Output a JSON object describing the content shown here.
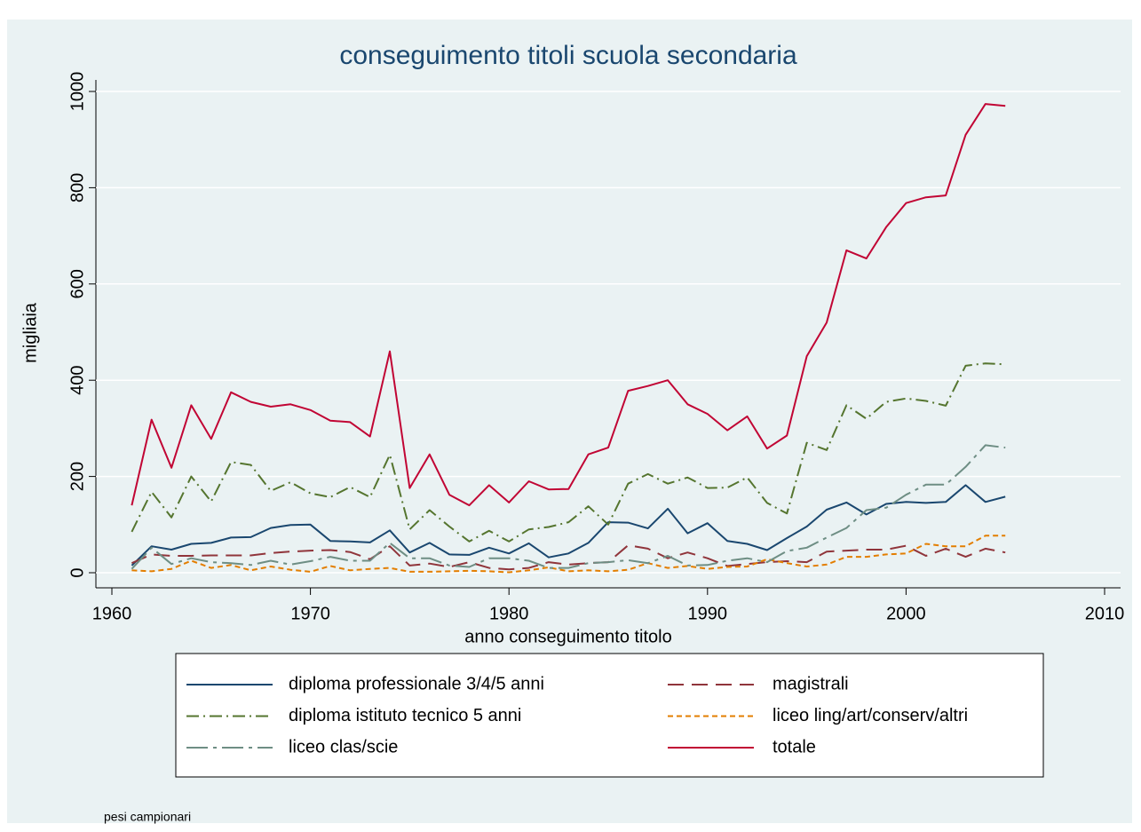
{
  "chart_data": {
    "type": "line",
    "title": "conseguimento titoli scuola secondaria",
    "x_label": "anno conseguimento titolo",
    "y_label": "migliaia",
    "note": "pesi campionari",
    "x": [
      1961,
      1962,
      1963,
      1964,
      1965,
      1966,
      1967,
      1968,
      1969,
      1970,
      1971,
      1972,
      1973,
      1974,
      1975,
      1976,
      1977,
      1978,
      1979,
      1980,
      1981,
      1982,
      1983,
      1984,
      1985,
      1986,
      1987,
      1988,
      1989,
      1990,
      1991,
      1992,
      1993,
      1994,
      1995,
      1996,
      1997,
      1998,
      1999,
      2000,
      2001,
      2002,
      2003,
      2004,
      2005
    ],
    "xlim": [
      1960,
      2010
    ],
    "xticks": [
      1960,
      1970,
      1980,
      1990,
      2000,
      2010
    ],
    "ylim": [
      0,
      1000
    ],
    "yticks": [
      0,
      200,
      400,
      600,
      800,
      1000
    ],
    "grid": true,
    "legend": "bottom",
    "series": [
      {
        "name": "diploma professionale 3/4/5 anni",
        "color": "#1a476f",
        "dash": "solid",
        "values": [
          15,
          55,
          48,
          60,
          62,
          73,
          74,
          93,
          99,
          100,
          66,
          65,
          63,
          88,
          42,
          62,
          38,
          37,
          52,
          40,
          61,
          32,
          40,
          62,
          105,
          104,
          92,
          133,
          82,
          103,
          66,
          60,
          47,
          72,
          96,
          131,
          146,
          121,
          143,
          147,
          145,
          147,
          182,
          147,
          158
        ]
      },
      {
        "name": "magistrali",
        "color": "#90353b",
        "dash": "longdash",
        "values": [
          20,
          38,
          35,
          35,
          36,
          36,
          36,
          41,
          44,
          46,
          47,
          43,
          28,
          55,
          15,
          19,
          12,
          22,
          10,
          7,
          10,
          22,
          17,
          20,
          22,
          57,
          50,
          30,
          42,
          30,
          14,
          18,
          22,
          24,
          22,
          44,
          46,
          48,
          48,
          56,
          35,
          50,
          33,
          50,
          42
        ]
      },
      {
        "name": "diploma istituto tecnico 5 anni",
        "color": "#55752f",
        "dash": "dashdot",
        "values": [
          85,
          168,
          115,
          200,
          148,
          230,
          224,
          170,
          188,
          165,
          157,
          178,
          157,
          245,
          90,
          130,
          96,
          65,
          87,
          65,
          90,
          95,
          105,
          138,
          100,
          185,
          205,
          185,
          198,
          176,
          177,
          198,
          145,
          123,
          270,
          255,
          348,
          320,
          355,
          362,
          357,
          347,
          430,
          435,
          433
        ]
      },
      {
        "name": "liceo ling/art/conserv/altri",
        "color": "#e37e00",
        "dash": "shortdash",
        "values": [
          5,
          3,
          8,
          25,
          10,
          16,
          5,
          13,
          6,
          2,
          14,
          5,
          8,
          10,
          2,
          2,
          3,
          4,
          3,
          1,
          5,
          11,
          3,
          5,
          3,
          6,
          20,
          10,
          14,
          8,
          12,
          13,
          28,
          20,
          13,
          17,
          33,
          33,
          38,
          40,
          60,
          55,
          55,
          77,
          77
        ]
      },
      {
        "name": "liceo clas/scie",
        "color": "#6e8e84",
        "dash": "longdashdot",
        "values": [
          8,
          52,
          18,
          30,
          22,
          20,
          16,
          25,
          17,
          24,
          33,
          25,
          25,
          62,
          30,
          30,
          15,
          12,
          30,
          30,
          25,
          10,
          10,
          20,
          22,
          26,
          20,
          35,
          15,
          16,
          25,
          30,
          22,
          45,
          52,
          73,
          93,
          130,
          135,
          162,
          183,
          183,
          220,
          265,
          260
        ]
      },
      {
        "name": "totale",
        "color": "#c10534",
        "dash": "solid",
        "values": [
          140,
          318,
          218,
          348,
          278,
          375,
          355,
          345,
          350,
          338,
          316,
          313,
          283,
          460,
          176,
          246,
          162,
          140,
          182,
          146,
          190,
          173,
          174,
          246,
          260,
          378,
          388,
          400,
          350,
          330,
          296,
          325,
          258,
          285,
          450,
          520,
          670,
          653,
          718,
          768,
          780,
          784,
          910,
          974,
          970
        ]
      }
    ]
  }
}
